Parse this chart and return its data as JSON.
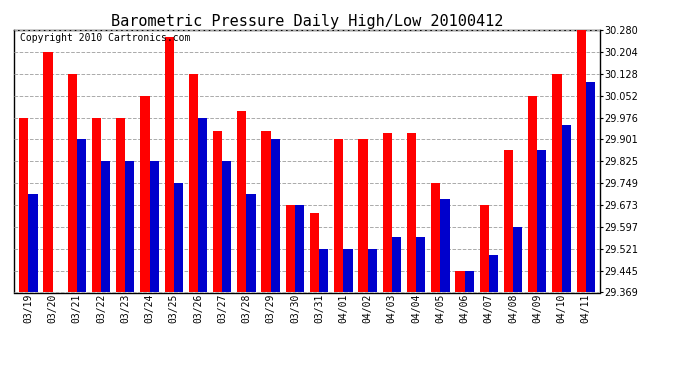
{
  "title": "Barometric Pressure Daily High/Low 20100412",
  "copyright": "Copyright 2010 Cartronics.com",
  "dates": [
    "03/19",
    "03/20",
    "03/21",
    "03/22",
    "03/23",
    "03/24",
    "03/25",
    "03/26",
    "03/27",
    "03/28",
    "03/29",
    "03/30",
    "03/31",
    "04/01",
    "04/02",
    "04/03",
    "04/04",
    "04/05",
    "04/06",
    "04/07",
    "04/08",
    "04/09",
    "04/10",
    "04/11"
  ],
  "highs": [
    29.976,
    30.204,
    30.128,
    29.976,
    29.976,
    30.052,
    30.256,
    30.128,
    29.93,
    30.0,
    29.93,
    29.673,
    29.645,
    29.901,
    29.901,
    29.921,
    29.921,
    29.749,
    29.445,
    29.673,
    29.863,
    30.052,
    30.128,
    30.28
  ],
  "lows": [
    29.711,
    29.369,
    29.901,
    29.825,
    29.825,
    29.825,
    29.749,
    29.976,
    29.825,
    29.71,
    29.901,
    29.673,
    29.521,
    29.521,
    29.521,
    29.56,
    29.56,
    29.693,
    29.445,
    29.5,
    29.597,
    29.863,
    29.95,
    30.1
  ],
  "high_color": "#ff0000",
  "low_color": "#0000cc",
  "bg_color": "#ffffff",
  "grid_color": "#aaaaaa",
  "ylim_min": 29.369,
  "ylim_max": 30.28,
  "yticks": [
    29.369,
    29.445,
    29.521,
    29.597,
    29.673,
    29.749,
    29.825,
    29.901,
    29.976,
    30.052,
    30.128,
    30.204,
    30.28
  ],
  "title_fontsize": 11,
  "copyright_fontsize": 7,
  "tick_fontsize": 7,
  "bar_width": 0.38
}
